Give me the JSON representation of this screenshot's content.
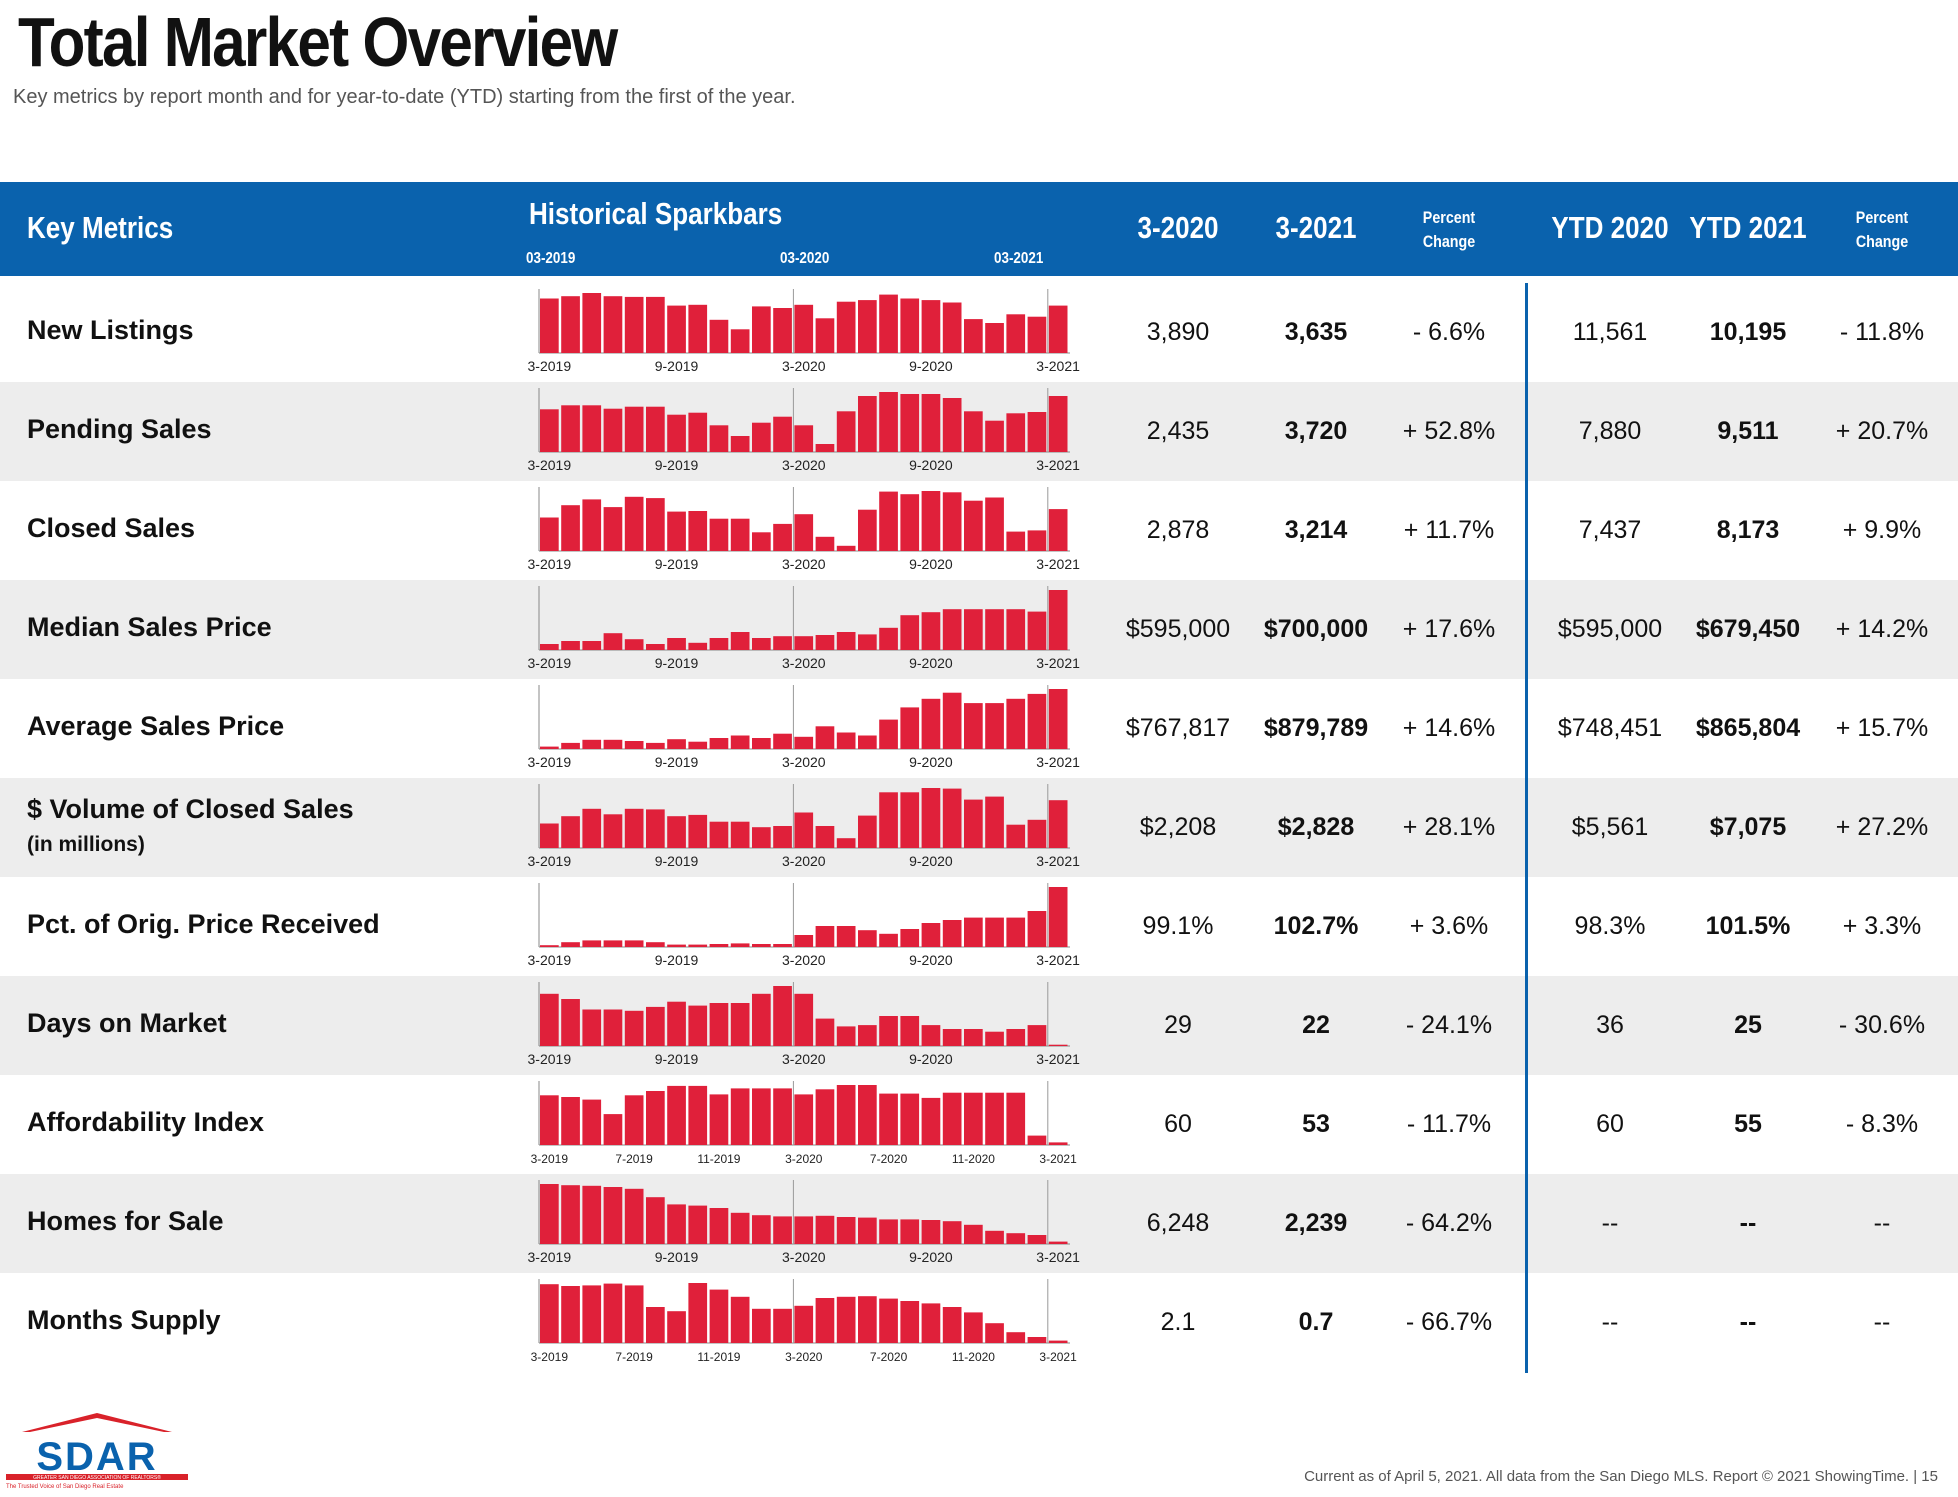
{
  "title": "Total Market Overview",
  "subtitle": "Key metrics by report month and for year-to-date (YTD) starting from the first of the year.",
  "header": {
    "key_metrics": "Key Metrics",
    "historical_sparkbars": "Historical Sparkbars",
    "spark_dates": [
      "03-2019",
      "03-2020",
      "03-2021"
    ],
    "col_3_2020": "3-2020",
    "col_3_2021": "3-2021",
    "percent": "Percent",
    "change": "Change",
    "ytd_2020": "YTD 2020",
    "ytd_2021": "YTD 2021"
  },
  "colors": {
    "header_blue": "#0a62ad",
    "bar_red": "#e0203a",
    "shade": "#ededed"
  },
  "rows": [
    {
      "label": "New Listings",
      "sub": "",
      "v2020": "3,890",
      "v2021": "3,635",
      "pct": "- 6.6%",
      "ytd2020": "11,561",
      "ytd2021": "10,195",
      "ytdpct": "- 11.8%",
      "axis": [
        "3-2019",
        "9-2019",
        "3-2020",
        "9-2020",
        "3-2021"
      ],
      "bars": [
        3450,
        3600,
        3800,
        3600,
        3550,
        3550,
        3000,
        3050,
        2100,
        1500,
        2950,
        2850,
        3050,
        2200,
        3250,
        3350,
        3700,
        3450,
        3350,
        3200,
        2150,
        1900,
        2450,
        2300,
        3000
      ]
    },
    {
      "label": "Pending Sales",
      "sub": "",
      "v2020": "2,435",
      "v2021": "3,720",
      "pct": "+ 52.8%",
      "ytd2020": "7,880",
      "ytd2021": "9,511",
      "ytdpct": "+ 20.7%",
      "axis": [
        "3-2019",
        "9-2019",
        "3-2020",
        "9-2020",
        "3-2021"
      ],
      "bars": [
        3200,
        3500,
        3500,
        3250,
        3400,
        3400,
        2800,
        2950,
        2000,
        1200,
        2200,
        2650,
        2000,
        600,
        3050,
        4200,
        4500,
        4350,
        4350,
        4050,
        3050,
        2350,
        2900,
        3000,
        4200
      ]
    },
    {
      "label": "Closed Sales",
      "sub": "",
      "v2020": "2,878",
      "v2021": "3,214",
      "pct": "+ 11.7%",
      "ytd2020": "7,437",
      "ytd2021": "8,173",
      "ytdpct": "+ 9.9%",
      "axis": [
        "3-2019",
        "9-2019",
        "3-2020",
        "9-2020",
        "3-2021"
      ],
      "bars": [
        2600,
        3550,
        4000,
        3400,
        4200,
        4100,
        3050,
        3100,
        2500,
        2500,
        1450,
        2100,
        2850,
        1100,
        400,
        3200,
        4600,
        4400,
        4650,
        4550,
        3900,
        4150,
        1500,
        1600,
        3250
      ]
    },
    {
      "label": "Median Sales Price",
      "sub": "",
      "v2020": "$595,000",
      "v2021": "$700,000",
      "pct": "+ 17.6%",
      "ytd2020": "$595,000",
      "ytd2021": "$679,450",
      "ytdpct": "+ 14.2%",
      "axis": [
        "3-2019",
        "9-2019",
        "3-2020",
        "9-2020",
        "3-2021"
      ],
      "bars": [
        10,
        15,
        15,
        28,
        18,
        10,
        20,
        12,
        20,
        30,
        20,
        23,
        23,
        25,
        30,
        26,
        37,
        58,
        63,
        68,
        68,
        68,
        68,
        64,
        100
      ]
    },
    {
      "label": "Average Sales Price",
      "sub": "",
      "v2020": "$767,817",
      "v2021": "$879,789",
      "pct": "+ 14.6%",
      "ytd2020": "$748,451",
      "ytd2021": "$865,804",
      "ytdpct": "+ 15.7%",
      "axis": [
        "3-2019",
        "9-2019",
        "3-2020",
        "9-2020",
        "3-2021"
      ],
      "bars": [
        4,
        10,
        15,
        15,
        13,
        10,
        16,
        12,
        18,
        22,
        18,
        25,
        20,
        37,
        27,
        22,
        48,
        68,
        82,
        92,
        75,
        75,
        82,
        90,
        98
      ]
    },
    {
      "label": "$ Volume of Closed Sales",
      "sub": "(in millions)",
      "v2020": "$2,208",
      "v2021": "$2,828",
      "pct": "+ 28.1%",
      "ytd2020": "$5,561",
      "ytd2021": "$7,075",
      "ytdpct": "+ 27.2%",
      "axis": [
        "3-2019",
        "9-2019",
        "3-2020",
        "9-2020",
        "3-2021"
      ],
      "bars": [
        2000,
        2600,
        3200,
        2750,
        3200,
        3150,
        2600,
        2700,
        2150,
        2150,
        1700,
        1800,
        2900,
        1800,
        800,
        2650,
        4550,
        4550,
        4900,
        4850,
        3950,
        4200,
        1900,
        2300,
        3900
      ]
    },
    {
      "label": "Pct. of Orig. Price Received",
      "sub": "",
      "v2020": "99.1%",
      "v2021": "102.7%",
      "pct": "+ 3.6%",
      "ytd2020": "98.3%",
      "ytd2021": "101.5%",
      "ytdpct": "+ 3.3%",
      "axis": [
        "3-2019",
        "9-2019",
        "3-2020",
        "9-2020",
        "3-2021"
      ],
      "bars": [
        3,
        8,
        11,
        11,
        11,
        8,
        4,
        4,
        5,
        6,
        5,
        5,
        20,
        35,
        35,
        28,
        22,
        30,
        40,
        45,
        49,
        49,
        49,
        60,
        100
      ]
    },
    {
      "label": "Days on Market",
      "sub": "",
      "v2020": "29",
      "v2021": "22",
      "pct": "- 24.1%",
      "ytd2020": "36",
      "ytd2021": "25",
      "ytdpct": "- 30.6%",
      "axis": [
        "3-2019",
        "9-2019",
        "3-2020",
        "9-2020",
        "3-2021"
      ],
      "bars": [
        40,
        36,
        28,
        28,
        27,
        30,
        34,
        31,
        33,
        33,
        40,
        46,
        40,
        21,
        15,
        16,
        23,
        23,
        16,
        13,
        13,
        11,
        13,
        16,
        1
      ]
    },
    {
      "label": "Affordability Index",
      "sub": "",
      "v2020": "60",
      "v2021": "53",
      "pct": "- 11.7%",
      "ytd2020": "60",
      "ytd2021": "55",
      "ytdpct": "- 8.3%",
      "axis": [
        "3-2019",
        "7-2019",
        "11-2019",
        "3-2020",
        "7-2020",
        "11-2020",
        "3-2021"
      ],
      "bars": [
        58,
        56,
        53,
        36,
        58,
        63,
        69,
        69,
        59,
        66,
        66,
        66,
        59,
        65,
        70,
        70,
        60,
        60,
        55,
        61,
        61,
        61,
        61,
        11,
        3
      ]
    },
    {
      "label": "Homes for Sale",
      "sub": "",
      "v2020": "6,248",
      "v2021": "2,239",
      "pct": "- 64.2%",
      "ytd2020": "--",
      "ytd2021": "--",
      "ytdpct": "--",
      "axis": [
        "3-2019",
        "9-2019",
        "3-2020",
        "9-2020",
        "3-2021"
      ],
      "bars": [
        100,
        98,
        97,
        95,
        92,
        78,
        66,
        64,
        60,
        52,
        48,
        46,
        46,
        47,
        45,
        44,
        41,
        41,
        40,
        38,
        32,
        22,
        18,
        15,
        4
      ]
    },
    {
      "label": "Months Supply",
      "sub": "",
      "v2020": "2.1",
      "v2021": "0.7",
      "pct": "- 66.7%",
      "ytd2020": "--",
      "ytd2021": "--",
      "ytdpct": "--",
      "axis": [
        "3-2019",
        "7-2019",
        "11-2019",
        "3-2020",
        "7-2020",
        "11-2020",
        "3-2021"
      ],
      "bars": [
        98,
        95,
        96,
        99,
        96,
        60,
        53,
        100,
        89,
        77,
        57,
        57,
        62,
        75,
        77,
        78,
        74,
        70,
        66,
        60,
        51,
        33,
        18,
        10,
        4
      ]
    }
  ],
  "footer": "Current as of April 5, 2021. All data from the San Diego MLS. Report © 2021 ShowingTime.  |  15",
  "logo": {
    "text": "SDAR",
    "line1": "GREATER SAN DIEGO ASSOCIATION OF REALTORS®",
    "line2": "The Trusted Voice of San Diego Real Estate"
  }
}
